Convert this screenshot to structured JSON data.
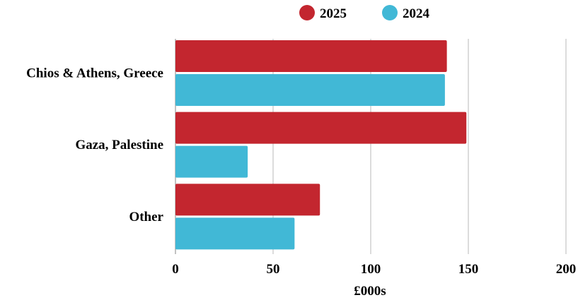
{
  "chart_data": {
    "type": "bar",
    "orientation": "horizontal",
    "categories": [
      "Chios & Athens, Greece",
      "Gaza, Palestine",
      "Other"
    ],
    "series": [
      {
        "name": "2025",
        "values": [
          139,
          149,
          74
        ],
        "color": "#c3262f"
      },
      {
        "name": "2024",
        "values": [
          138,
          37,
          61
        ],
        "color": "#41b8d6"
      }
    ],
    "xlabel": "£000s",
    "ylabel": "",
    "xlim": [
      0,
      200
    ],
    "xticks": [
      "0",
      "50",
      "100",
      "150",
      "200"
    ],
    "grid": true,
    "legend_position": "top-center"
  }
}
